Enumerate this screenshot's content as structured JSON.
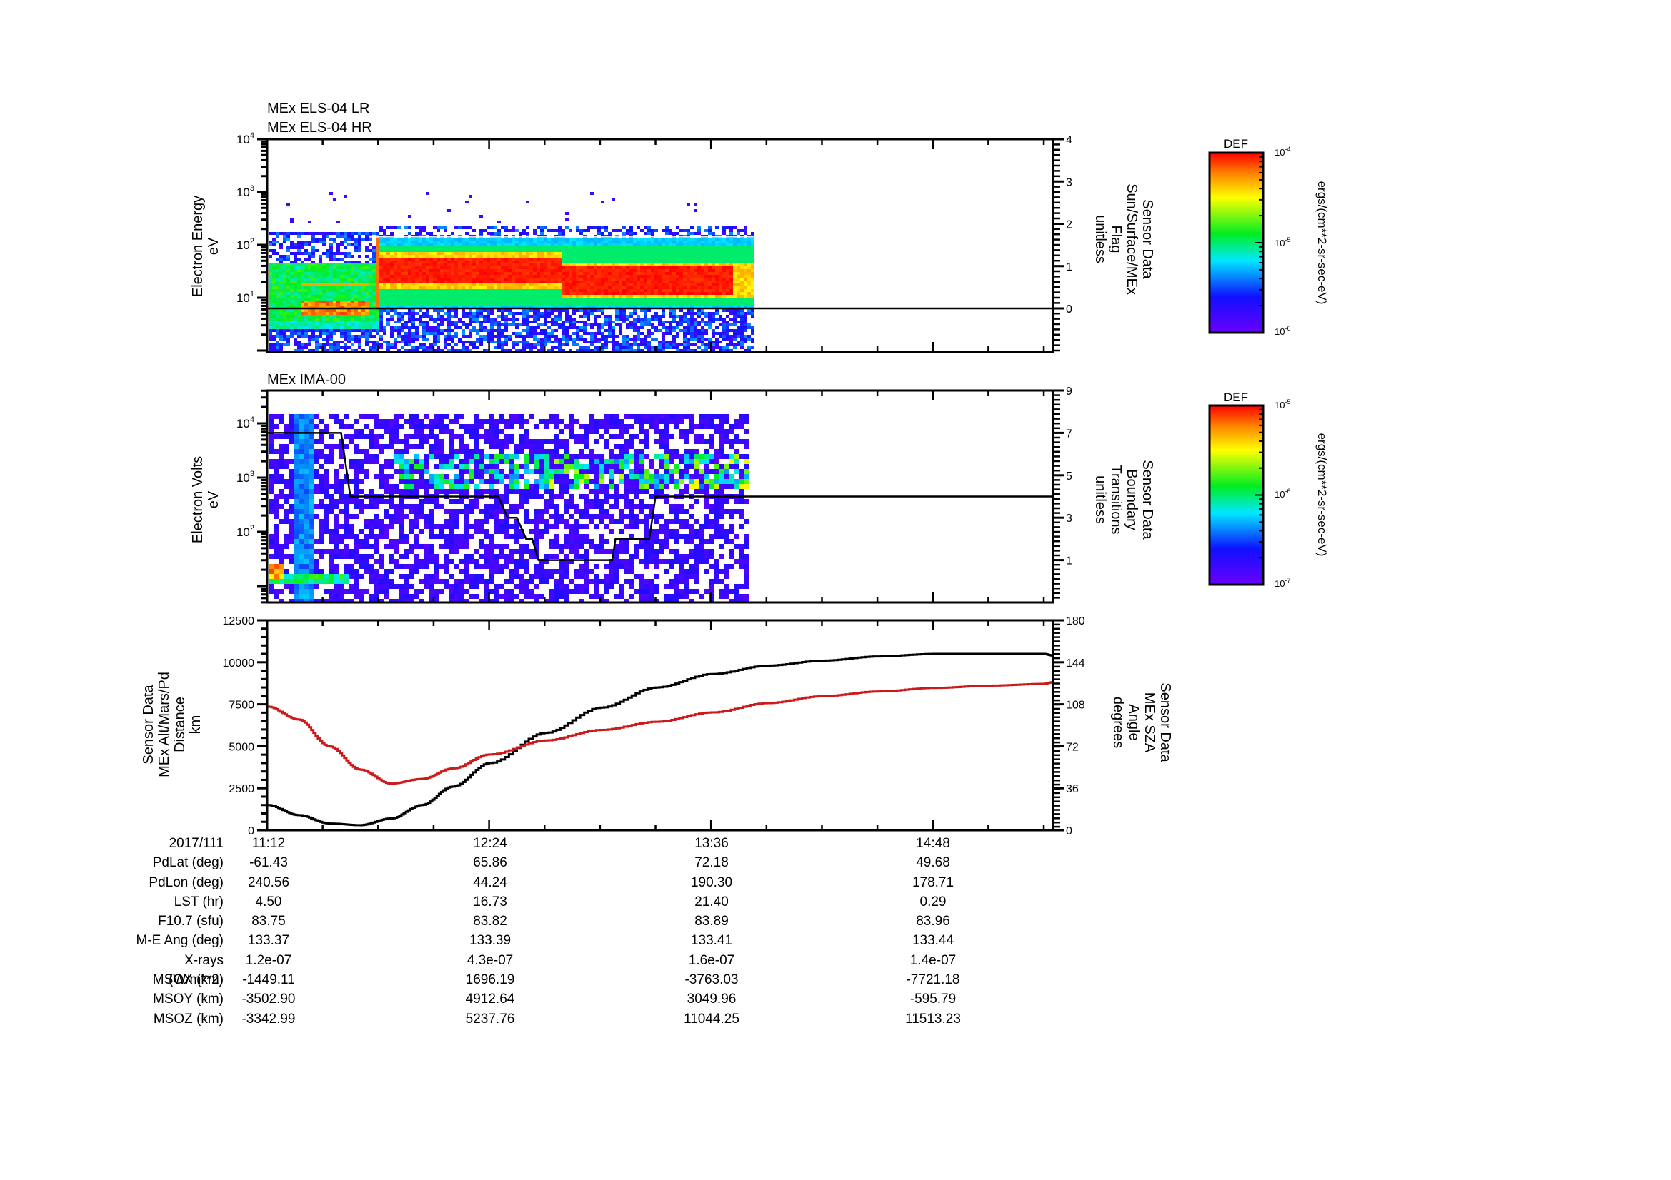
{
  "colors": {
    "axis": "#000000",
    "altitude_line": "#000000",
    "sza_line": "#cc1a1a",
    "sza_label": "#cc1a1a"
  },
  "chart_data": [
    {
      "type": "heatmap",
      "title_lines": [
        "MEx ELS-04 LR",
        "MEx ELS-04 HR"
      ],
      "ylabel": [
        "Electron Energy",
        "eV"
      ],
      "yscale": "log",
      "ylim": [
        1,
        10000
      ],
      "yticks": [
        "10^1",
        "10^2",
        "10^3",
        "10^4"
      ],
      "y2label": [
        "Sensor Data",
        "Sun/Surface/MEx",
        "Flag",
        "unitless"
      ],
      "y2lim": [
        -0.9,
        4
      ],
      "y2ticks": [
        0,
        1,
        2,
        3,
        4
      ],
      "overlay_line": {
        "name": "Sun/Surface/MEx Flag",
        "value": 0
      },
      "data_time_range": [
        "11:12",
        "13:50"
      ],
      "colorbar": {
        "label": "DEF",
        "units": "ergs/(cm**2-sr-sec-eV)",
        "ticks": [
          "10^-6",
          "10^-5",
          "10^-4"
        ],
        "range": [
          1e-06,
          0.0001
        ]
      },
      "features": [
        {
          "time": "11:12-11:34",
          "energy_eV": "5-50",
          "desc": "warm band, peak ~6-8 eV and ~18 eV"
        },
        {
          "time": "11:35",
          "energy_eV": "10-150",
          "desc": "narrow vertical spike"
        },
        {
          "time": "11:40-13:47",
          "energy_eV": "20-60",
          "desc": "intense red band"
        }
      ]
    },
    {
      "type": "heatmap",
      "title": "MEx IMA-00",
      "ylabel": [
        "Electron Volts",
        "eV"
      ],
      "yscale": "log",
      "ylim": [
        6,
        40000
      ],
      "yticks": [
        "10^2",
        "10^3",
        "10^4"
      ],
      "y2label": [
        "Sensor Data",
        "Boundary",
        "Transitions",
        "unitless"
      ],
      "y2lim": [
        -1,
        9
      ],
      "y2ticks": [
        1,
        3,
        5,
        7,
        9
      ],
      "overlay_line": {
        "name": "Boundary Transitions",
        "points": [
          [
            "11:12",
            7
          ],
          [
            "11:36",
            7
          ],
          [
            "11:39",
            4
          ],
          [
            "12:27",
            4
          ],
          [
            "12:30",
            3
          ],
          [
            "12:33",
            3
          ],
          [
            "12:36",
            2
          ],
          [
            "12:38",
            2
          ],
          [
            "12:40",
            1
          ],
          [
            "13:04",
            1
          ],
          [
            "13:05",
            2
          ],
          [
            "13:16",
            2
          ],
          [
            "13:18",
            4
          ],
          [
            "15:27",
            4
          ]
        ]
      },
      "data_time_range": [
        "11:12",
        "13:47"
      ],
      "colorbar": {
        "label": "DEF",
        "units": "ergs/(cm**2-sr-sec-eV)",
        "ticks": [
          "10^-7",
          "10^-6",
          "10^-5"
        ],
        "range": [
          1e-07,
          1e-05
        ]
      }
    },
    {
      "type": "line",
      "ylabel": [
        "Sensor Data",
        "MEx Alt/Mars/Pd",
        "Distance",
        "km"
      ],
      "ylim": [
        0,
        12500
      ],
      "yticks": [
        0,
        2500,
        5000,
        7500,
        10000,
        12500
      ],
      "y2label": [
        "Sensor Data",
        "MEx SZA",
        "Angle",
        "degrees"
      ],
      "y2lim": [
        0,
        180
      ],
      "y2ticks": [
        0,
        36,
        72,
        108,
        144,
        180
      ],
      "x_minutes_from_1112": [
        0,
        10,
        20,
        30,
        40,
        50,
        60,
        72,
        90,
        108,
        126,
        144,
        162,
        180,
        198,
        216,
        234,
        252,
        255
      ],
      "series": [
        {
          "name": "MEx Alt/Mars/Pd Distance (km)",
          "axis": "left",
          "color": "#000000",
          "values": [
            1500,
            900,
            400,
            300,
            700,
            1500,
            2600,
            4000,
            5800,
            7300,
            8500,
            9300,
            9800,
            10100,
            10350,
            10500,
            10500,
            10500,
            10400
          ]
        },
        {
          "name": "MEx SZA (deg)",
          "axis": "right",
          "color": "#cc1a1a",
          "values": [
            106,
            95,
            72,
            52,
            40,
            44,
            53,
            65,
            77,
            86,
            93,
            101,
            109,
            115,
            119,
            122,
            124,
            125.5,
            127
          ]
        }
      ]
    }
  ],
  "time_axis": {
    "date": "2017/111",
    "ticks": [
      "11:12",
      "12:24",
      "13:36",
      "14:48"
    ],
    "minor_step_min": 18,
    "range_min": [
      0,
      255
    ]
  },
  "ephemeris": {
    "rows": [
      {
        "label": "PdLat (deg)",
        "values": [
          "-61.43",
          "65.86",
          "72.18",
          "49.68"
        ]
      },
      {
        "label": "PdLon (deg)",
        "values": [
          "240.56",
          "44.24",
          "190.30",
          "178.71"
        ]
      },
      {
        "label": "LST (hr)",
        "values": [
          "4.50",
          "16.73",
          "21.40",
          "0.29"
        ]
      },
      {
        "label": "F10.7 (sfu)",
        "values": [
          "83.75",
          "83.82",
          "83.89",
          "83.96"
        ]
      },
      {
        "label": "M-E Ang (deg)",
        "values": [
          "133.37",
          "133.39",
          "133.41",
          "133.44"
        ]
      },
      {
        "label": "X-rays (W/m**2)",
        "values": [
          "1.2e-07",
          "4.3e-07",
          "1.6e-07",
          "1.4e-07"
        ]
      },
      {
        "label": "MSOX (km)",
        "values": [
          "-1449.11",
          "1696.19",
          "-3763.03",
          "-7721.18"
        ]
      },
      {
        "label": "MSOY (km)",
        "values": [
          "-3502.90",
          "4912.64",
          "3049.96",
          "-595.79"
        ]
      },
      {
        "label": "MSOZ (km)",
        "values": [
          "-3342.99",
          "5237.76",
          "11044.25",
          "11513.23"
        ]
      }
    ]
  }
}
